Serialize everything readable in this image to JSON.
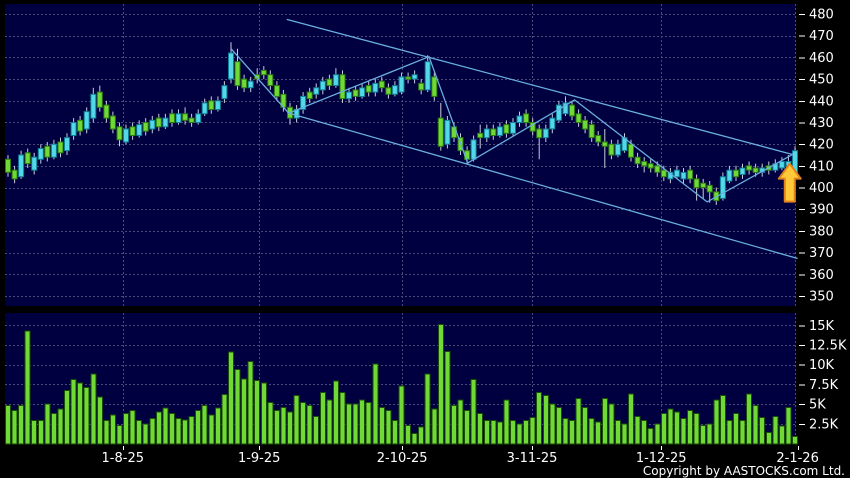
{
  "copyright": "Copyright by AASTOCKS.com Ltd.",
  "colors": {
    "background": "#000000",
    "panel": "#000040",
    "gridline": "#4a4a78",
    "up_candle_fill": "#54d8e8",
    "up_candle_stroke": "#0e7f96",
    "down_candle_fill": "#70d935",
    "down_candle_stroke": "#2f7d12",
    "wick": "#c8ccd8",
    "volume_bar_fill": "#70d935",
    "volume_bar_stroke": "#1a4d06",
    "trendline": "#69aede",
    "arrow_fill": "#ffc937",
    "arrow_stroke": "#e2821e",
    "axis_text": "#ffffff"
  },
  "price_axis": {
    "labels": [
      "480",
      "470",
      "460",
      "450",
      "440",
      "430",
      "420",
      "410",
      "400",
      "390",
      "380",
      "370",
      "360",
      "350"
    ],
    "max": 480,
    "min": 350,
    "step": 10
  },
  "volume_axis": {
    "labels": [
      "15K",
      "12.5K",
      "10K",
      "7.5K",
      "5K",
      "2.5K"
    ],
    "values_k": [
      15,
      12.5,
      10,
      7.5,
      5,
      2.5
    ]
  },
  "x_axis": {
    "labels": [
      "1-8-25",
      "1-9-25",
      "2-10-25",
      "3-11-25",
      "1-12-25",
      "2-1-26"
    ],
    "tick_indices": [
      17.5,
      38.3,
      60.1,
      79.9,
      99.6,
      120.4
    ]
  },
  "chart_data": {
    "type": "candlestick_with_volume",
    "title": "",
    "legend": "none",
    "grid": "dashed",
    "price_range": [
      350,
      480
    ],
    "volume_range_k": [
      0,
      16
    ],
    "candles_ohlc": [
      [
        413,
        415,
        405,
        407
      ],
      [
        408,
        410,
        402,
        404
      ],
      [
        405,
        417,
        404,
        415
      ],
      [
        416,
        418,
        409,
        411
      ],
      [
        408,
        416,
        406,
        414
      ],
      [
        413,
        420,
        411,
        418
      ],
      [
        419,
        421,
        412,
        414
      ],
      [
        414,
        422,
        413,
        420
      ],
      [
        421,
        423,
        414,
        416
      ],
      [
        417,
        425,
        415,
        423
      ],
      [
        424,
        432,
        422,
        430
      ],
      [
        431,
        433,
        424,
        426
      ],
      [
        427,
        437,
        425,
        435
      ],
      [
        432,
        446,
        430,
        443
      ],
      [
        444,
        447,
        435,
        437
      ],
      [
        438,
        440,
        430,
        432
      ],
      [
        433,
        435,
        425,
        427
      ],
      [
        428,
        430,
        419,
        422
      ],
      [
        421,
        429,
        420,
        427
      ],
      [
        428,
        430,
        422,
        424
      ],
      [
        424,
        431,
        423,
        429
      ],
      [
        430,
        432,
        424,
        426
      ],
      [
        427,
        433,
        425,
        431
      ],
      [
        432,
        434,
        426,
        428
      ],
      [
        428,
        434,
        427,
        432
      ],
      [
        434,
        436,
        428,
        430
      ],
      [
        430,
        436,
        429,
        434
      ],
      [
        434,
        437,
        429,
        431
      ],
      [
        432,
        434,
        428,
        430
      ],
      [
        430,
        436,
        429,
        434
      ],
      [
        434,
        441,
        433,
        439
      ],
      [
        440,
        442,
        434,
        436
      ],
      [
        436,
        442,
        435,
        440
      ],
      [
        441,
        449,
        439,
        447
      ],
      [
        450,
        467,
        448,
        462
      ],
      [
        458,
        464,
        445,
        447
      ],
      [
        450,
        452,
        444,
        446
      ],
      [
        446,
        451,
        444,
        449
      ],
      [
        452,
        455,
        448,
        450
      ],
      [
        454,
        456,
        450,
        452
      ],
      [
        452,
        454,
        445,
        447
      ],
      [
        447,
        449,
        440,
        442
      ],
      [
        443,
        445,
        435,
        437
      ],
      [
        437,
        439,
        429,
        432
      ],
      [
        432,
        438,
        430,
        436
      ],
      [
        436,
        444,
        434,
        442
      ],
      [
        444,
        446,
        439,
        441
      ],
      [
        443,
        448,
        441,
        446
      ],
      [
        445,
        451,
        443,
        449
      ],
      [
        450,
        452,
        445,
        447
      ],
      [
        447,
        455,
        446,
        452
      ],
      [
        452,
        454,
        439,
        441
      ],
      [
        441,
        446,
        439,
        444
      ],
      [
        445,
        447,
        440,
        442
      ],
      [
        442,
        448,
        441,
        446
      ],
      [
        447,
        449,
        442,
        444
      ],
      [
        444,
        450,
        442,
        448
      ],
      [
        449,
        451,
        444,
        446
      ],
      [
        446,
        448,
        441,
        443
      ],
      [
        443,
        449,
        442,
        447
      ],
      [
        444,
        453,
        443,
        451
      ],
      [
        451,
        453,
        448,
        450
      ],
      [
        450,
        454,
        448,
        452
      ],
      [
        448,
        450,
        443,
        445
      ],
      [
        445,
        461,
        444,
        458
      ],
      [
        451,
        453,
        440,
        442
      ],
      [
        432,
        439,
        417,
        419
      ],
      [
        420,
        433,
        418,
        431
      ],
      [
        428,
        430,
        421,
        423
      ],
      [
        423,
        425,
        415,
        417
      ],
      [
        417,
        419,
        411,
        413
      ],
      [
        413,
        424,
        412,
        422
      ],
      [
        425,
        429,
        418,
        423
      ],
      [
        423,
        429,
        421,
        427
      ],
      [
        427,
        429,
        422,
        424
      ],
      [
        424,
        430,
        423,
        428
      ],
      [
        429,
        431,
        423,
        425
      ],
      [
        425,
        432,
        424,
        430
      ],
      [
        430,
        435,
        428,
        433
      ],
      [
        434,
        436,
        428,
        430
      ],
      [
        430,
        432,
        424,
        426
      ],
      [
        427,
        429,
        413,
        423
      ],
      [
        423,
        429,
        421,
        427
      ],
      [
        427,
        434,
        425,
        432
      ],
      [
        431,
        440,
        430,
        438
      ],
      [
        434,
        442,
        433,
        439
      ],
      [
        438,
        440,
        431,
        433
      ],
      [
        434,
        436,
        428,
        430
      ],
      [
        431,
        433,
        425,
        427
      ],
      [
        429,
        431,
        421,
        423
      ],
      [
        424,
        426,
        419,
        421
      ],
      [
        421,
        427,
        409,
        419
      ],
      [
        420,
        422,
        413,
        415
      ],
      [
        415,
        422,
        414,
        420
      ],
      [
        417,
        425,
        416,
        423
      ],
      [
        420,
        422,
        412,
        414
      ],
      [
        414,
        416,
        409,
        411
      ],
      [
        412,
        414,
        407,
        410
      ],
      [
        411,
        413,
        407,
        409
      ],
      [
        410,
        412,
        405,
        407
      ],
      [
        408,
        410,
        403,
        405
      ],
      [
        404,
        409,
        402,
        407
      ],
      [
        405,
        410,
        404,
        408
      ],
      [
        404,
        409,
        402,
        407
      ],
      [
        408,
        410,
        402,
        404
      ],
      [
        404,
        406,
        394,
        400
      ],
      [
        402,
        404,
        395,
        400
      ],
      [
        401,
        403,
        393,
        398
      ],
      [
        398,
        400,
        392,
        394
      ],
      [
        395,
        407,
        394,
        405
      ],
      [
        403,
        410,
        402,
        408
      ],
      [
        408,
        410,
        403,
        405
      ],
      [
        406,
        411,
        404,
        409
      ],
      [
        410,
        412,
        406,
        408
      ],
      [
        409,
        411,
        405,
        407
      ],
      [
        407,
        411,
        405,
        409
      ],
      [
        410,
        412,
        406,
        408
      ],
      [
        408,
        413,
        407,
        411
      ],
      [
        409,
        414,
        408,
        412
      ],
      [
        410,
        415,
        408,
        412
      ],
      [
        407,
        419,
        406,
        417
      ]
    ],
    "volumes_k": [
      4.8,
      4.2,
      4.8,
      14.3,
      2.9,
      2.9,
      5.0,
      3.8,
      4.4,
      6.7,
      8.1,
      7.7,
      7.1,
      8.8,
      5.9,
      2.9,
      3.6,
      2.3,
      3.8,
      4.2,
      2.9,
      2.5,
      3.2,
      4.0,
      4.5,
      3.8,
      3.2,
      3.0,
      3.4,
      4.2,
      4.8,
      3.6,
      4.5,
      6.2,
      11.6,
      9.4,
      8.2,
      10.4,
      8.0,
      7.7,
      5.2,
      4.2,
      4.6,
      4.0,
      6.1,
      5.2,
      4.8,
      3.4,
      6.5,
      5.5,
      7.9,
      6.5,
      5.0,
      5.0,
      5.5,
      5.2,
      10.1,
      4.6,
      4.2,
      2.9,
      7.3,
      2.3,
      1.3,
      2.1,
      8.8,
      4.4,
      15.1,
      11.7,
      4.8,
      5.5,
      4.2,
      8.1,
      3.8,
      2.9,
      2.9,
      2.7,
      5.5,
      2.9,
      2.5,
      2.9,
      3.3,
      6.5,
      6.1,
      5.0,
      4.6,
      3.2,
      2.9,
      5.7,
      4.6,
      3.2,
      2.7,
      5.7,
      5.0,
      2.9,
      2.5,
      6.3,
      3.4,
      2.9,
      1.9,
      2.5,
      3.8,
      4.4,
      4.0,
      3.2,
      4.2,
      3.8,
      2.3,
      2.5,
      5.5,
      6.1,
      2.9,
      3.8,
      2.9,
      6.3,
      4.8,
      3.3,
      1.4,
      3.4,
      2.2,
      4.6,
      0.9
    ],
    "overlays": {
      "upper_channel_line": {
        "from": {
          "i": 42.5,
          "price": 477.5
        },
        "to": {
          "i": 119.7,
          "price": 415.2
        }
      },
      "lower_channel_line": {
        "from": {
          "i": 42.8,
          "price": 434.3
        },
        "to": {
          "i": 120.4,
          "price": 367.3
        }
      },
      "zigzag_points": [
        {
          "i": 34.0,
          "price": 464.0
        },
        {
          "i": 42.8,
          "price": 434.3
        },
        {
          "i": 64.2,
          "price": 460.3
        },
        {
          "i": 70.1,
          "price": 411.3
        },
        {
          "i": 86.4,
          "price": 440.4
        },
        {
          "i": 106.6,
          "price": 393.4
        },
        {
          "i": 119.6,
          "price": 415.2
        }
      ],
      "signal_arrow": {
        "direction": "up",
        "i": 119.2,
        "tip_price": 411,
        "base_price": 393.5
      }
    }
  }
}
